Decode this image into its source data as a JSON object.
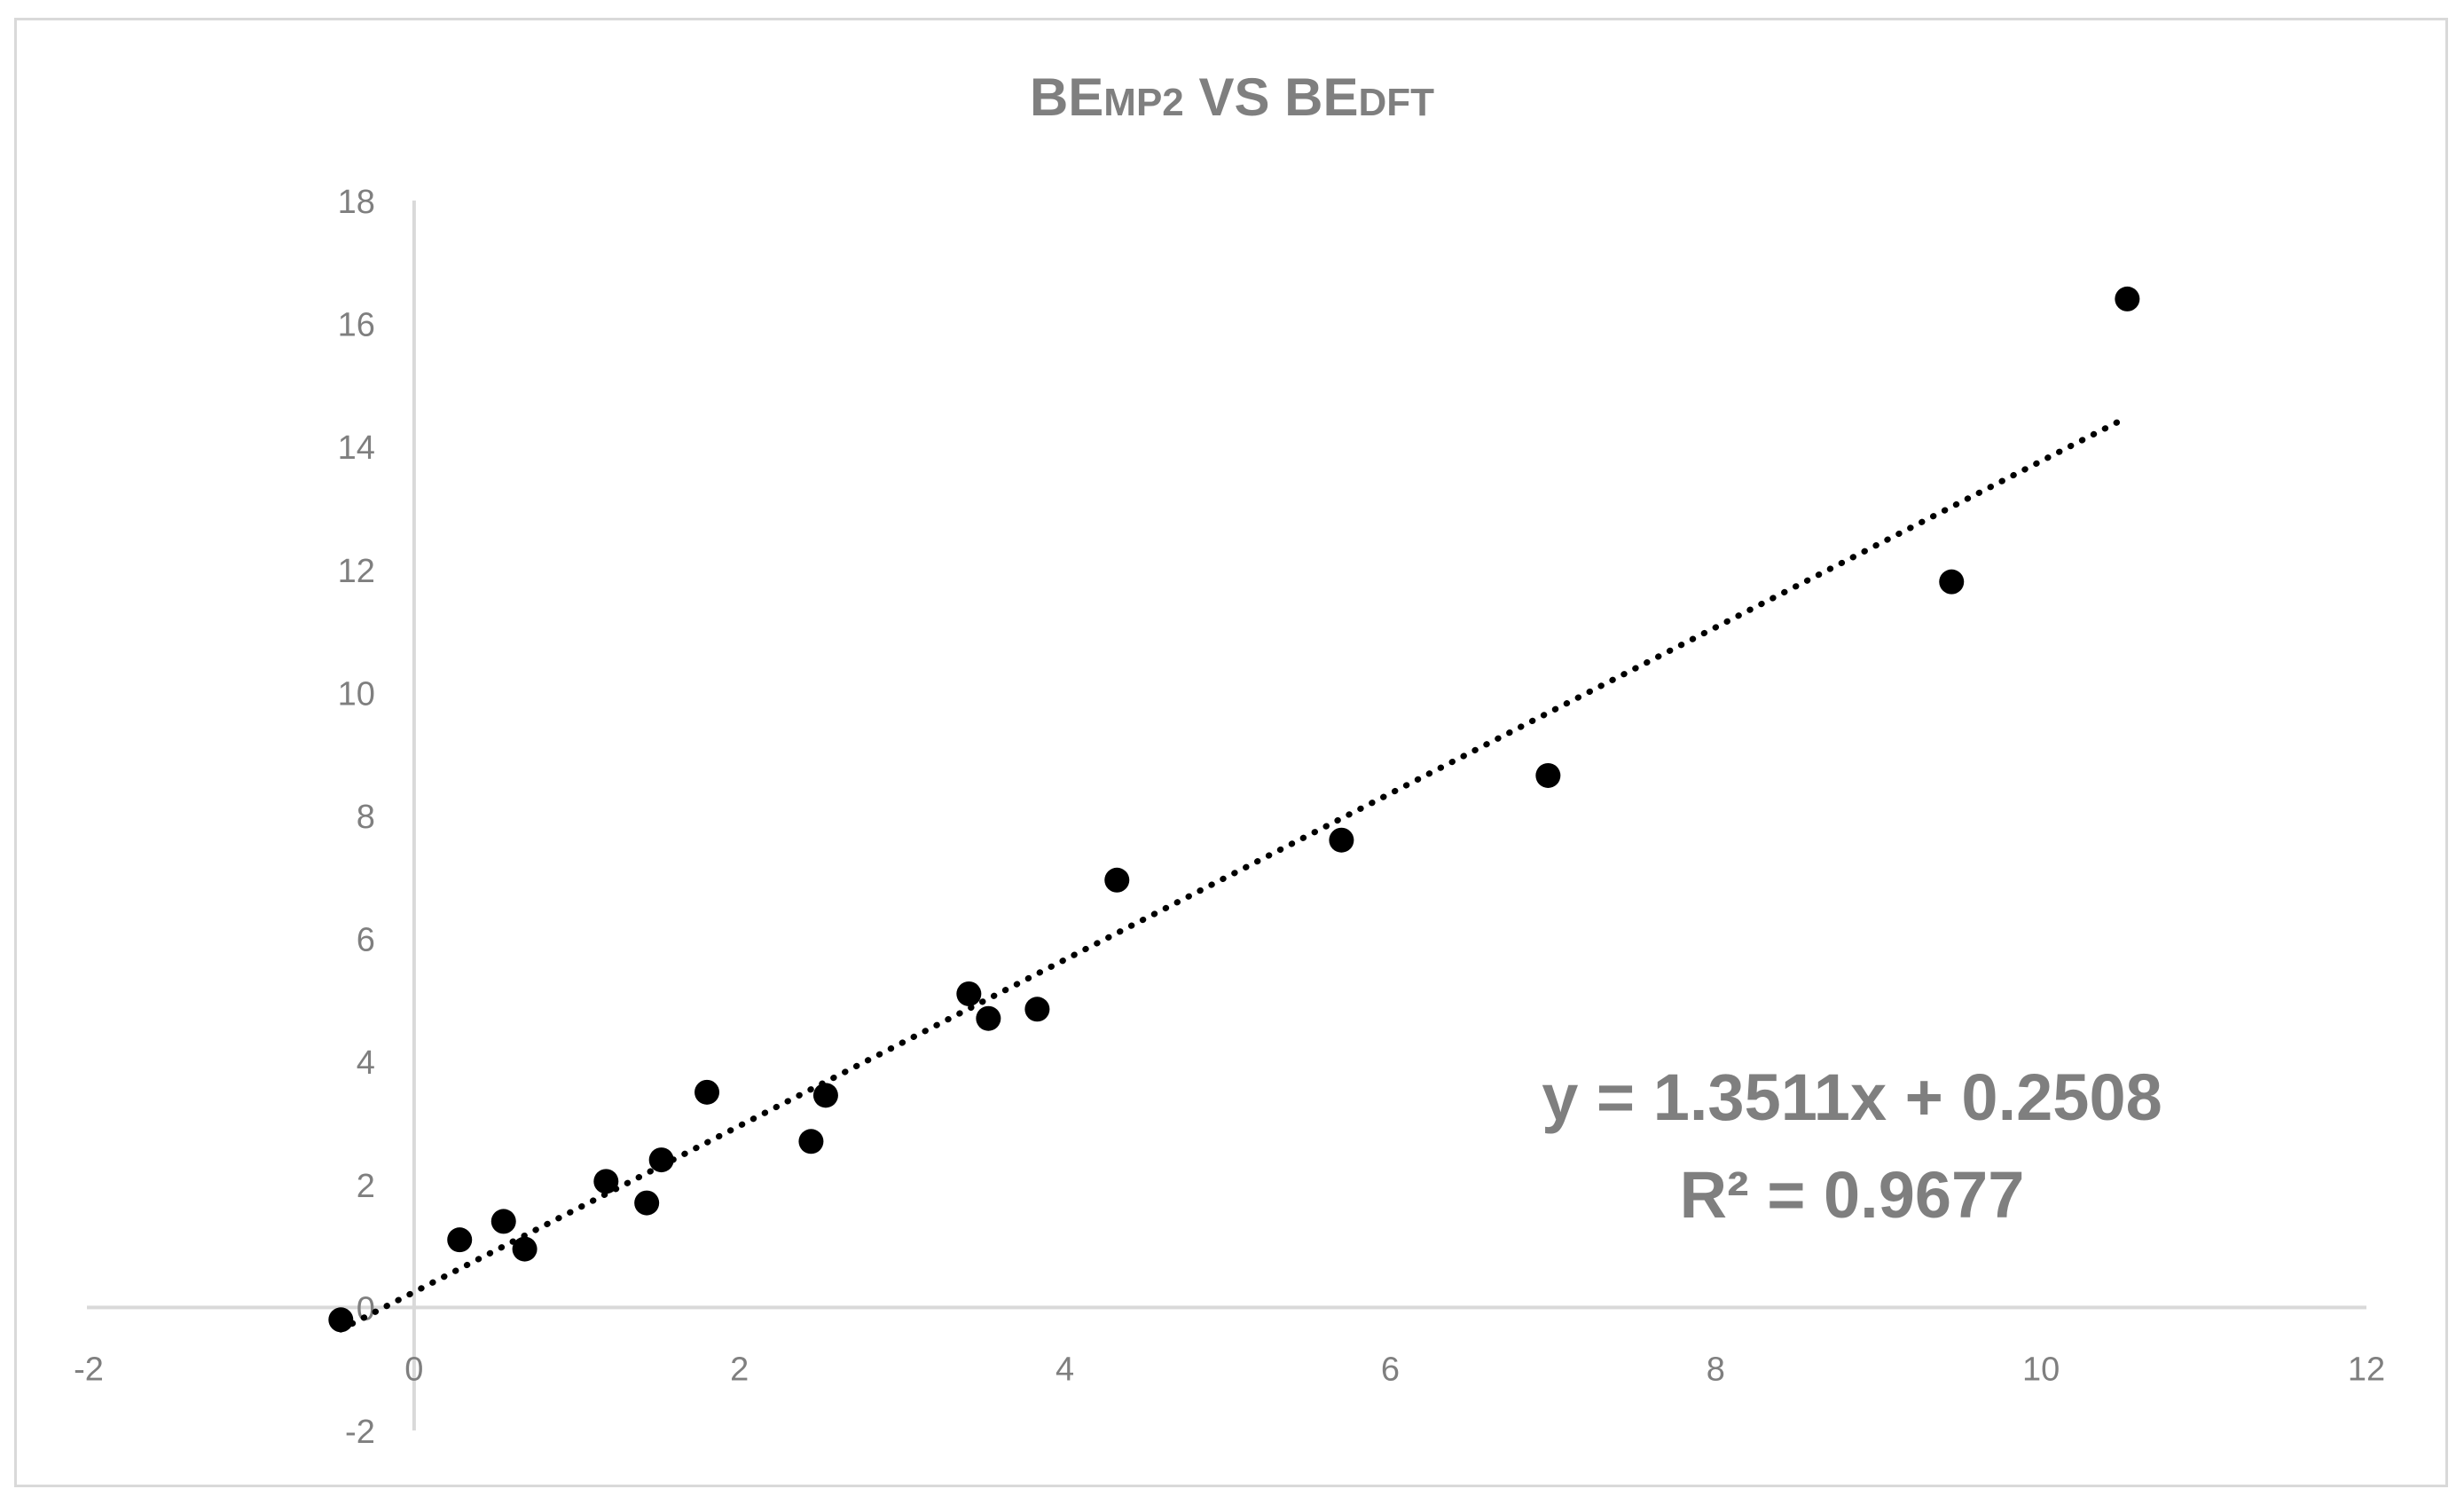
{
  "chart_data": {
    "type": "scatter",
    "title_parts": {
      "main_a": "BE",
      "sub_a": "MP2",
      "vs": " VS ",
      "main_b": "BE",
      "sub_b": "DFT"
    },
    "xlim": [
      -2,
      12
    ],
    "ylim": [
      -2,
      18
    ],
    "x_ticks": [
      -2,
      0,
      2,
      4,
      6,
      8,
      10,
      12
    ],
    "y_ticks": [
      -2,
      0,
      2,
      4,
      6,
      8,
      10,
      12,
      14,
      16,
      18
    ],
    "points": [
      {
        "x": -0.45,
        "y": -0.2
      },
      {
        "x": 0.28,
        "y": 1.1
      },
      {
        "x": 0.55,
        "y": 1.4
      },
      {
        "x": 0.68,
        "y": 0.95
      },
      {
        "x": 1.18,
        "y": 2.05
      },
      {
        "x": 1.43,
        "y": 1.7
      },
      {
        "x": 1.52,
        "y": 2.4
      },
      {
        "x": 1.8,
        "y": 3.5
      },
      {
        "x": 2.44,
        "y": 2.7
      },
      {
        "x": 2.53,
        "y": 3.45
      },
      {
        "x": 3.41,
        "y": 5.1
      },
      {
        "x": 3.53,
        "y": 4.7
      },
      {
        "x": 3.83,
        "y": 4.85
      },
      {
        "x": 4.32,
        "y": 6.95
      },
      {
        "x": 5.7,
        "y": 7.6
      },
      {
        "x": 6.97,
        "y": 8.65
      },
      {
        "x": 9.45,
        "y": 11.8
      },
      {
        "x": 10.53,
        "y": 16.4
      }
    ],
    "trendline": {
      "type": "linear",
      "slope": 1.3511,
      "intercept": 0.2508,
      "x_range": [
        -0.45,
        10.53
      ],
      "equation_label": "y = 1.3511x + 0.2508",
      "r2_label": "R² = 0.9677"
    },
    "grid": false,
    "legend": "none",
    "colors": {
      "points": "#000000",
      "trendline": "#000000",
      "axis": "#d9d9d9",
      "text": "#7f7f7f"
    }
  }
}
